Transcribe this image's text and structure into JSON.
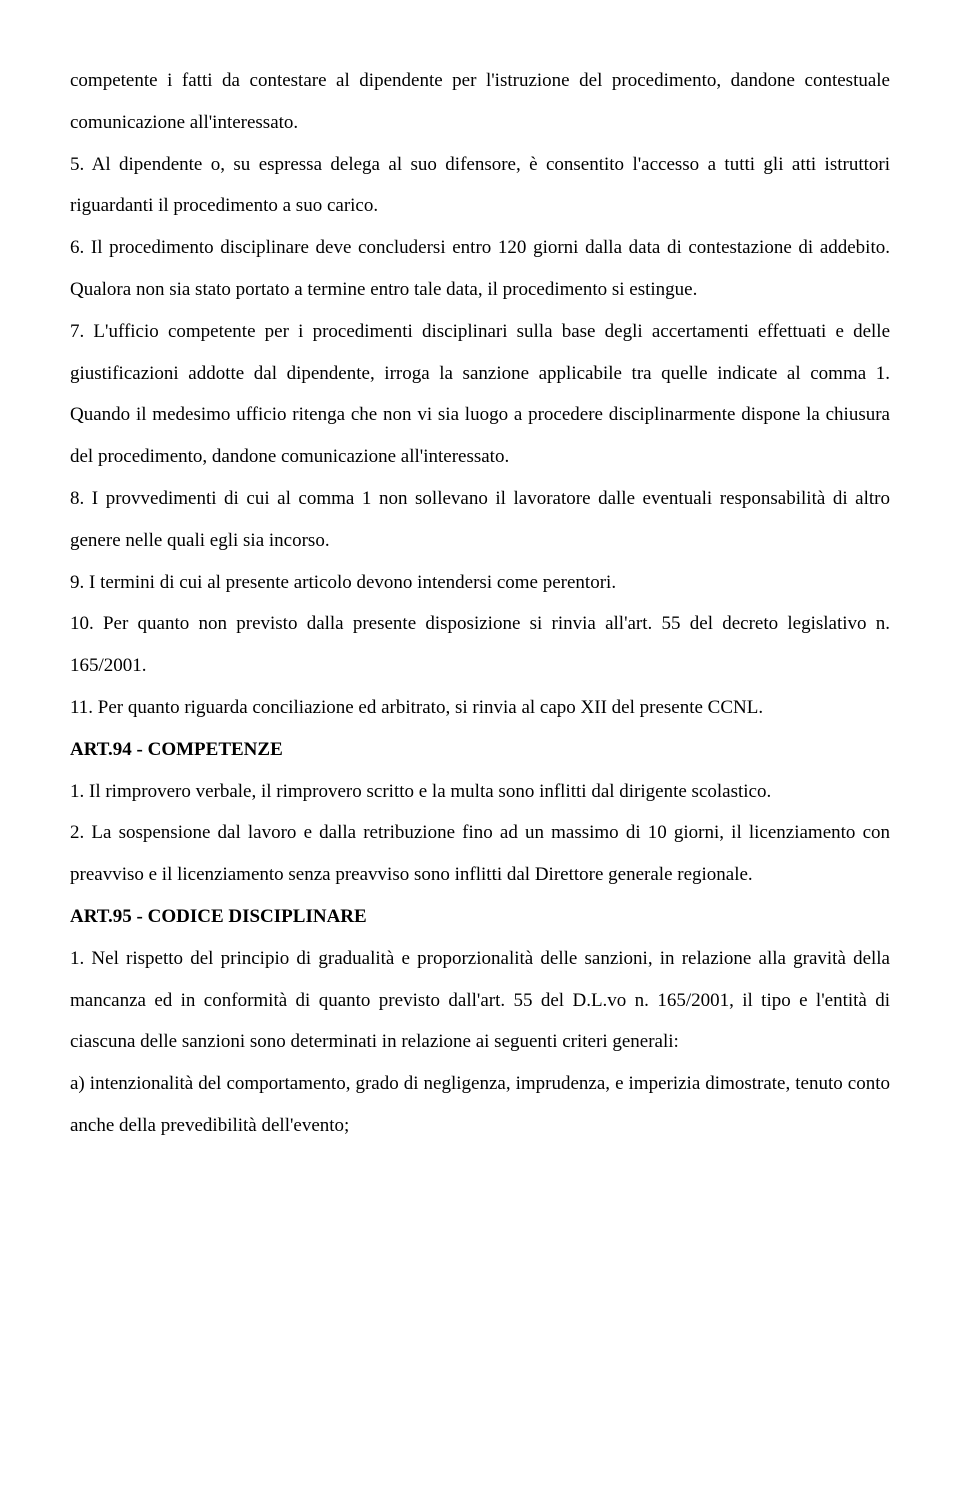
{
  "paragraphs": [
    {
      "text": "competente i fatti da contestare al dipendente per l'istruzione del procedimento, dandone contestuale comunicazione all'interessato.",
      "bold": false
    },
    {
      "text": " 5. Al dipendente o, su espressa delega al suo difensore, è consentito l'accesso a tutti gli atti istruttori riguardanti il procedimento a suo carico.",
      "bold": false
    },
    {
      "text": " 6. Il procedimento disciplinare deve concludersi entro 120 giorni dalla data di contestazione di addebito. Qualora non sia stato portato a termine entro tale data, il procedimento si estingue.",
      "bold": false
    },
    {
      "text": " 7. L'ufficio competente per i procedimenti disciplinari sulla base degli accertamenti effettuati e delle giustificazioni addotte dal dipendente, irroga la sanzione applicabile tra quelle indicate al comma 1. Quando il medesimo ufficio ritenga che non vi sia luogo a procedere disciplinarmente dispone la chiusura del procedimento, dandone comunicazione all'interessato.",
      "bold": false
    },
    {
      "text": " 8. I provvedimenti di cui al comma 1 non sollevano il lavoratore dalle eventuali responsabilità di altro genere nelle quali egli sia incorso.",
      "bold": false
    },
    {
      "text": " 9. I termini di cui al presente articolo devono intendersi come perentori.",
      "bold": false
    },
    {
      "text": " 10. Per quanto non previsto dalla presente disposizione si rinvia all'art. 55 del decreto legislativo n. 165/2001.",
      "bold": false
    },
    {
      "text": " 11. Per quanto riguarda conciliazione ed arbitrato, si rinvia al capo XII del presente CCNL.",
      "bold": false
    },
    {
      "text": " ART.94 - COMPETENZE",
      "bold": true
    },
    {
      "text": " 1. Il rimprovero verbale, il rimprovero scritto e la multa sono inflitti dal dirigente scolastico.",
      "bold": false
    },
    {
      "text": " 2. La sospensione dal lavoro e dalla retribuzione fino ad un massimo di 10 giorni, il licenziamento con preavviso e il licenziamento senza preavviso sono inflitti dal Direttore generale regionale.",
      "bold": false
    },
    {
      "text": "ART.95 - CODICE DISCIPLINARE",
      "bold": true
    },
    {
      "text": " 1. Nel rispetto del principio di gradualità e proporzionalità delle sanzioni, in relazione alla gravità della mancanza ed in conformità di quanto previsto dall'art. 55 del D.L.vo n. 165/2001, il tipo e l'entità di ciascuna delle sanzioni sono determinati in relazione ai seguenti criteri generali:",
      "bold": false
    },
    {
      "text": "a) intenzionalità del comportamento, grado di negligenza, imprudenza, e imperizia dimostrate, tenuto conto anche della prevedibilità dell'evento;",
      "bold": false
    }
  ]
}
